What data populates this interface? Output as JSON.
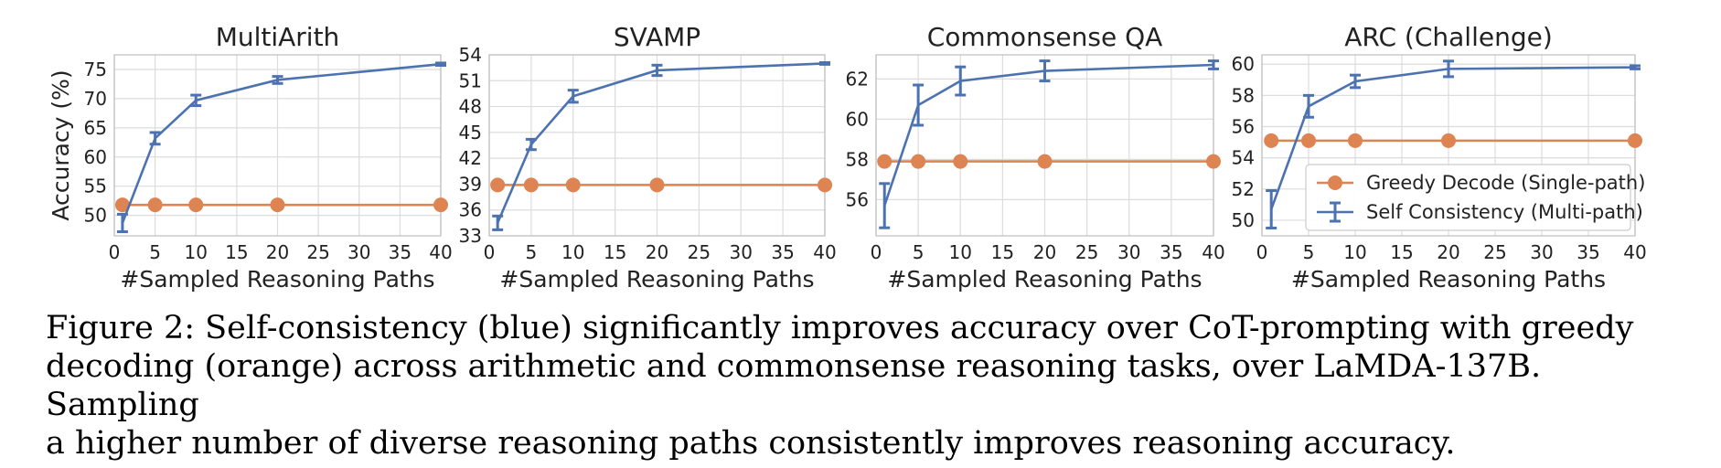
{
  "caption": "Figure 2: Self-consistency (blue) significantly improves accuracy over CoT-prompting with greedy\ndecoding (orange) across arithmetic and commonsense reasoning tasks, over LaMDA-137B. Sampling\na higher number of diverse reasoning paths consistently improves reasoning accuracy.",
  "colors": {
    "greedy": "#dd8452",
    "self_consistency": "#4c72b0",
    "grid": "#dcdcdc"
  },
  "legend": {
    "placement": "lower-right of ARC (Challenge) panel",
    "entries": [
      "Greedy Decode (Single-path)",
      "Self Consistency (Multi-path)"
    ]
  },
  "chart_data": [
    {
      "type": "line",
      "title": "MultiArith",
      "xlabel": "#Sampled Reasoning Paths",
      "ylabel": "Accuracy (%)",
      "xlim": [
        0,
        40
      ],
      "ylim": [
        46.5,
        77.5
      ],
      "xticks": [
        0,
        5,
        10,
        15,
        20,
        25,
        30,
        35,
        40
      ],
      "yticks": [
        50,
        55,
        60,
        65,
        70,
        75
      ],
      "grid": true,
      "x": [
        1,
        5,
        10,
        20,
        40
      ],
      "series": [
        {
          "name": "Greedy Decode (Single-path)",
          "values": [
            51.8,
            51.8,
            51.8,
            51.8,
            51.8
          ]
        },
        {
          "name": "Self Consistency (Multi-path)",
          "values": [
            48.7,
            63.2,
            69.7,
            73.2,
            75.9
          ],
          "errors": [
            1.5,
            1.0,
            0.9,
            0.6,
            0.2
          ]
        }
      ]
    },
    {
      "type": "line",
      "title": "SVAMP",
      "xlabel": "#Sampled Reasoning Paths",
      "ylabel": "",
      "xlim": [
        0,
        40
      ],
      "ylim": [
        33,
        54
      ],
      "xticks": [
        0,
        5,
        10,
        15,
        20,
        25,
        30,
        35,
        40
      ],
      "yticks": [
        33,
        36,
        39,
        42,
        45,
        48,
        51,
        54
      ],
      "grid": true,
      "x": [
        1,
        5,
        10,
        20,
        40
      ],
      "series": [
        {
          "name": "Greedy Decode (Single-path)",
          "values": [
            38.9,
            38.9,
            38.9,
            38.9,
            38.9
          ]
        },
        {
          "name": "Self Consistency (Multi-path)",
          "values": [
            34.5,
            43.6,
            49.2,
            52.2,
            53.0
          ],
          "errors": [
            0.8,
            0.6,
            0.7,
            0.6,
            0.1
          ]
        }
      ]
    },
    {
      "type": "line",
      "title": "Commonsense QA",
      "xlabel": "#Sampled Reasoning Paths",
      "ylabel": "",
      "xlim": [
        0,
        40
      ],
      "ylim": [
        54.2,
        63.2
      ],
      "xticks": [
        0,
        5,
        10,
        15,
        20,
        25,
        30,
        35,
        40
      ],
      "yticks": [
        56,
        58,
        60,
        62
      ],
      "grid": true,
      "x": [
        1,
        5,
        10,
        20,
        40
      ],
      "series": [
        {
          "name": "Greedy Decode (Single-path)",
          "values": [
            57.9,
            57.9,
            57.9,
            57.9,
            57.9
          ]
        },
        {
          "name": "Self Consistency (Multi-path)",
          "values": [
            55.7,
            60.7,
            61.9,
            62.4,
            62.7
          ],
          "errors": [
            1.1,
            1.0,
            0.7,
            0.5,
            0.2
          ]
        }
      ]
    },
    {
      "type": "line",
      "title": "ARC (Challenge)",
      "xlabel": "#Sampled Reasoning Paths",
      "ylabel": "",
      "xlim": [
        0,
        40
      ],
      "ylim": [
        49.0,
        60.6
      ],
      "xticks": [
        0,
        5,
        10,
        15,
        20,
        25,
        30,
        35,
        40
      ],
      "yticks": [
        50,
        52,
        54,
        56,
        58,
        60
      ],
      "grid": true,
      "x": [
        1,
        5,
        10,
        20,
        40
      ],
      "series": [
        {
          "name": "Greedy Decode (Single-path)",
          "values": [
            55.1,
            55.1,
            55.1,
            55.1,
            55.1
          ]
        },
        {
          "name": "Self Consistency (Multi-path)",
          "values": [
            50.7,
            57.3,
            58.9,
            59.7,
            59.8
          ],
          "errors": [
            1.2,
            0.7,
            0.4,
            0.5,
            0.1
          ]
        }
      ]
    }
  ]
}
